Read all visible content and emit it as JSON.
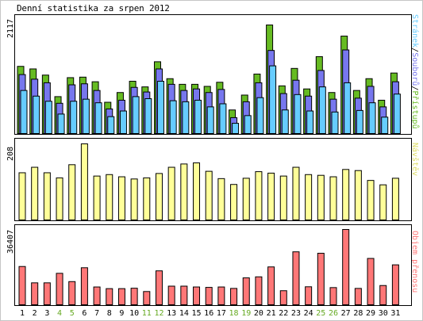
{
  "title": "Denní statistika za srpen 2012",
  "colors": {
    "hits": "#66bb22",
    "files": "#7777ee",
    "pages": "#66ccff",
    "visits": "#ffff99",
    "kbytes": "#ff7777",
    "weekend_label": "#66aa22",
    "weekday_label": "#000000",
    "panel_border": "#000000",
    "outer_border": "#c6c6c6"
  },
  "legend": {
    "top": {
      "pages": "Stránek",
      "sep1": "/",
      "files": "Souborů",
      "sep2": "/",
      "hits": "Přístupů"
    },
    "middle": "Návštěv",
    "bottom": "Objem přenosu"
  },
  "chart_data": [
    {
      "type": "bar",
      "title": "Denní statistika za srpen 2012",
      "xlabel": "",
      "ylabel": "",
      "categories": [
        "1",
        "2",
        "3",
        "4",
        "5",
        "6",
        "7",
        "8",
        "9",
        "10",
        "11",
        "12",
        "13",
        "14",
        "15",
        "16",
        "17",
        "18",
        "19",
        "20",
        "21",
        "22",
        "23",
        "24",
        "25",
        "26",
        "27",
        "28",
        "29",
        "30",
        "31"
      ],
      "weekend_days": [
        "4",
        "5",
        "11",
        "12",
        "18",
        "19",
        "25",
        "26"
      ],
      "ymax_label": "2117",
      "ylim": [
        0,
        2117
      ],
      "grid": false,
      "legend_position": "right (vertical)",
      "series": [
        {
          "name": "Přístupů",
          "values": [
            1310,
            1260,
            1140,
            720,
            1090,
            1100,
            1010,
            610,
            800,
            1020,
            910,
            1400,
            1070,
            960,
            960,
            920,
            1000,
            460,
            750,
            1160,
            2117,
            930,
            1270,
            870,
            1500,
            800,
            1900,
            840,
            1070,
            650,
            1180
          ]
        },
        {
          "name": "Souborů",
          "values": [
            1150,
            1060,
            990,
            590,
            950,
            970,
            840,
            480,
            650,
            900,
            810,
            1260,
            960,
            840,
            870,
            800,
            860,
            310,
            620,
            990,
            1620,
            780,
            1040,
            730,
            1230,
            670,
            1630,
            690,
            920,
            520,
            1010
          ]
        },
        {
          "name": "Stránek",
          "values": [
            840,
            730,
            630,
            380,
            630,
            670,
            600,
            330,
            440,
            720,
            680,
            1020,
            640,
            620,
            650,
            520,
            580,
            200,
            350,
            700,
            1320,
            460,
            760,
            440,
            910,
            420,
            990,
            450,
            600,
            320,
            770
          ]
        }
      ]
    },
    {
      "type": "bar",
      "categories": [
        "1",
        "2",
        "3",
        "4",
        "5",
        "6",
        "7",
        "8",
        "9",
        "10",
        "11",
        "12",
        "13",
        "14",
        "15",
        "16",
        "17",
        "18",
        "19",
        "20",
        "21",
        "22",
        "23",
        "24",
        "25",
        "26",
        "27",
        "28",
        "29",
        "30",
        "31"
      ],
      "ymax_label": "208",
      "ylim": [
        0,
        208
      ],
      "grid": false,
      "series": [
        {
          "name": "Návštěv",
          "values": [
            129,
            144,
            129,
            115,
            151,
            208,
            120,
            124,
            118,
            112,
            115,
            127,
            144,
            153,
            156,
            133,
            113,
            97,
            114,
            132,
            128,
            120,
            144,
            124,
            122,
            118,
            138,
            135,
            108,
            96,
            114
          ]
        }
      ]
    },
    {
      "type": "bar",
      "categories": [
        "1",
        "2",
        "3",
        "4",
        "5",
        "6",
        "7",
        "8",
        "9",
        "10",
        "11",
        "12",
        "13",
        "14",
        "15",
        "16",
        "17",
        "18",
        "19",
        "20",
        "21",
        "22",
        "23",
        "24",
        "25",
        "26",
        "27",
        "28",
        "29",
        "30",
        "31"
      ],
      "ymax_label": "36407",
      "ylim": [
        0,
        36407
      ],
      "grid": false,
      "series": [
        {
          "name": "Objem přenosu",
          "values": [
            18500,
            10600,
            10600,
            15200,
            11200,
            17900,
            8600,
            7800,
            7800,
            8000,
            6400,
            16400,
            9000,
            9000,
            8600,
            8400,
            8600,
            7900,
            13000,
            13500,
            18300,
            6800,
            25600,
            8700,
            24900,
            8300,
            36407,
            7900,
            22400,
            9300,
            19300
          ]
        }
      ]
    }
  ]
}
